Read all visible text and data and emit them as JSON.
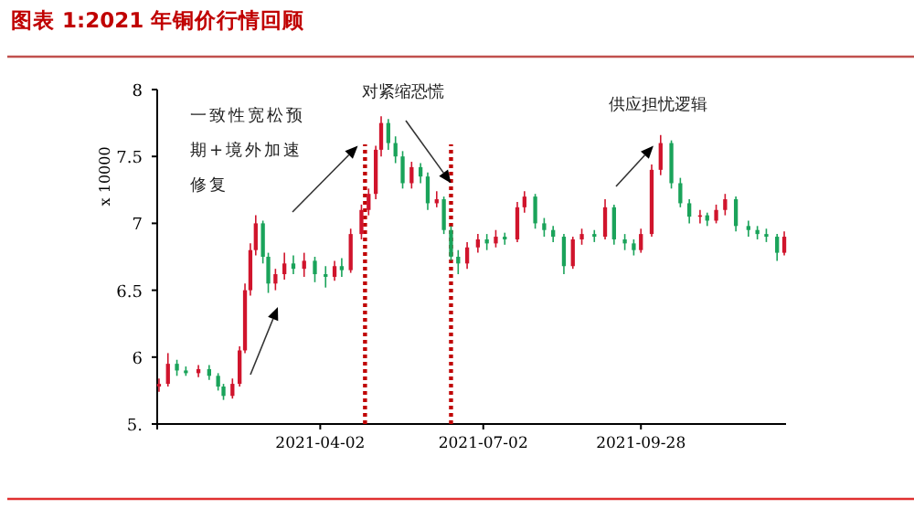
{
  "chart_data": {
    "type": "candlestick",
    "title": "图表 1:2021 年铜价行情回顾",
    "ylabel": "x 10000",
    "x": [
      "2021-01-02",
      "2021-01-07",
      "2021-01-12",
      "2021-01-17",
      "2021-01-24",
      "2021-01-30",
      "2021-02-04",
      "2021-02-07",
      "2021-02-12",
      "2021-02-16",
      "2021-02-19",
      "2021-02-22",
      "2021-02-25",
      "2021-03-01",
      "2021-03-04",
      "2021-03-08",
      "2021-03-13",
      "2021-03-18",
      "2021-03-24",
      "2021-03-30",
      "2021-04-05",
      "2021-04-10",
      "2021-04-14",
      "2021-04-19",
      "2021-04-25",
      "2021-04-29",
      "2021-05-03",
      "2021-05-06",
      "2021-05-10",
      "2021-05-14",
      "2021-05-18",
      "2021-05-23",
      "2021-05-28",
      "2021-06-01",
      "2021-06-06",
      "2021-06-10",
      "2021-06-14",
      "2021-06-18",
      "2021-06-23",
      "2021-06-29",
      "2021-07-04",
      "2021-07-09",
      "2021-07-14",
      "2021-07-21",
      "2021-07-25",
      "2021-07-31",
      "2021-08-05",
      "2021-08-10",
      "2021-08-16",
      "2021-08-21",
      "2021-08-26",
      "2021-09-02",
      "2021-09-08",
      "2021-09-13",
      "2021-09-19",
      "2021-09-24",
      "2021-09-28",
      "2021-10-04",
      "2021-10-09",
      "2021-10-15",
      "2021-10-20",
      "2021-10-25",
      "2021-10-31",
      "2021-11-04",
      "2021-11-09",
      "2021-11-14",
      "2021-11-20",
      "2021-11-27",
      "2021-12-02",
      "2021-12-07",
      "2021-12-13",
      "2021-12-17"
    ],
    "ohlc": [
      [
        5.78,
        5.84,
        5.74,
        5.8
      ],
      [
        5.8,
        6.03,
        5.78,
        5.95
      ],
      [
        5.95,
        5.98,
        5.86,
        5.9
      ],
      [
        5.9,
        5.93,
        5.86,
        5.88
      ],
      [
        5.88,
        5.94,
        5.85,
        5.91
      ],
      [
        5.91,
        5.94,
        5.83,
        5.86
      ],
      [
        5.86,
        5.88,
        5.75,
        5.78
      ],
      [
        5.78,
        5.8,
        5.68,
        5.71
      ],
      [
        5.71,
        5.84,
        5.69,
        5.8
      ],
      [
        5.8,
        6.08,
        5.78,
        6.05
      ],
      [
        6.05,
        6.55,
        6.03,
        6.5
      ],
      [
        6.5,
        6.85,
        6.46,
        6.8
      ],
      [
        6.8,
        7.06,
        6.76,
        7.0
      ],
      [
        7.0,
        7.02,
        6.7,
        6.75
      ],
      [
        6.75,
        6.78,
        6.48,
        6.55
      ],
      [
        6.55,
        6.66,
        6.5,
        6.62
      ],
      [
        6.62,
        6.78,
        6.58,
        6.7
      ],
      [
        6.7,
        6.76,
        6.62,
        6.66
      ],
      [
        6.66,
        6.78,
        6.6,
        6.72
      ],
      [
        6.72,
        6.75,
        6.56,
        6.62
      ],
      [
        6.62,
        6.68,
        6.52,
        6.6
      ],
      [
        6.6,
        6.72,
        6.57,
        6.68
      ],
      [
        6.68,
        6.74,
        6.6,
        6.65
      ],
      [
        6.65,
        6.96,
        6.63,
        6.92
      ],
      [
        6.92,
        7.14,
        6.88,
        7.1
      ],
      [
        7.1,
        7.26,
        7.06,
        7.22
      ],
      [
        7.22,
        7.58,
        7.18,
        7.55
      ],
      [
        7.55,
        7.8,
        7.5,
        7.75
      ],
      [
        7.75,
        7.78,
        7.55,
        7.6
      ],
      [
        7.6,
        7.65,
        7.45,
        7.5
      ],
      [
        7.5,
        7.54,
        7.26,
        7.3
      ],
      [
        7.3,
        7.46,
        7.26,
        7.42
      ],
      [
        7.42,
        7.45,
        7.3,
        7.35
      ],
      [
        7.35,
        7.38,
        7.1,
        7.15
      ],
      [
        7.15,
        7.24,
        7.12,
        7.18
      ],
      [
        7.18,
        7.2,
        6.92,
        6.95
      ],
      [
        6.95,
        6.98,
        6.72,
        6.75
      ],
      [
        6.75,
        6.8,
        6.62,
        6.7
      ],
      [
        6.7,
        6.86,
        6.66,
        6.82
      ],
      [
        6.82,
        6.92,
        6.78,
        6.88
      ],
      [
        6.88,
        6.92,
        6.8,
        6.85
      ],
      [
        6.85,
        6.95,
        6.82,
        6.9
      ],
      [
        6.9,
        6.93,
        6.84,
        6.88
      ],
      [
        6.88,
        7.16,
        6.86,
        7.12
      ],
      [
        7.12,
        7.24,
        7.08,
        7.2
      ],
      [
        7.2,
        7.22,
        6.96,
        7.0
      ],
      [
        7.0,
        7.04,
        6.9,
        6.95
      ],
      [
        6.95,
        6.98,
        6.86,
        6.9
      ],
      [
        6.9,
        6.92,
        6.62,
        6.68
      ],
      [
        6.68,
        6.9,
        6.66,
        6.88
      ],
      [
        6.88,
        6.96,
        6.84,
        6.92
      ],
      [
        6.92,
        6.95,
        6.86,
        6.9
      ],
      [
        6.9,
        7.18,
        6.88,
        7.12
      ],
      [
        7.12,
        7.14,
        6.84,
        6.88
      ],
      [
        6.88,
        6.92,
        6.8,
        6.85
      ],
      [
        6.85,
        6.88,
        6.76,
        6.8
      ],
      [
        6.8,
        6.96,
        6.78,
        6.92
      ],
      [
        6.92,
        7.44,
        6.9,
        7.4
      ],
      [
        7.4,
        7.66,
        7.36,
        7.6
      ],
      [
        7.6,
        7.62,
        7.26,
        7.3
      ],
      [
        7.3,
        7.34,
        7.12,
        7.15
      ],
      [
        7.15,
        7.18,
        7.0,
        7.05
      ],
      [
        7.05,
        7.1,
        7.0,
        7.06
      ],
      [
        7.06,
        7.08,
        6.98,
        7.02
      ],
      [
        7.02,
        7.14,
        7.0,
        7.1
      ],
      [
        7.1,
        7.22,
        7.06,
        7.18
      ],
      [
        7.18,
        7.2,
        6.94,
        6.98
      ],
      [
        6.98,
        7.02,
        6.9,
        6.95
      ],
      [
        6.95,
        6.98,
        6.88,
        6.92
      ],
      [
        6.92,
        6.96,
        6.86,
        6.9
      ],
      [
        6.9,
        6.92,
        6.72,
        6.78
      ],
      [
        6.78,
        6.94,
        6.76,
        6.9
      ]
    ],
    "xlim": [
      "2021-01-01",
      "2021-12-18"
    ],
    "xticks": [
      "2021-04-02",
      "2021-07-02",
      "2021-09-28"
    ],
    "ylim": [
      5.5,
      8
    ],
    "yticks": [
      {
        "value": 5.5,
        "label": "5."
      },
      6,
      6.5,
      7,
      7.5,
      8
    ],
    "ref_lines": [
      {
        "axis": "x",
        "value": "2021-04-27",
        "color": "#c00000",
        "line_style": "dotted"
      },
      {
        "axis": "x",
        "value": "2021-06-14",
        "color": "#c00000",
        "line_style": "dotted"
      }
    ],
    "annotations": [
      {
        "text": "一致性宽松预期+境外加速修复",
        "x": "2021-04-23",
        "y": 7.58
      },
      {
        "text": "对紧缩恐慌",
        "x": "2021-06-14",
        "y": 7.3
      },
      {
        "text": "供应担忧逻辑",
        "x": "2021-10-05",
        "y": 7.58
      }
    ],
    "grid": false
  }
}
